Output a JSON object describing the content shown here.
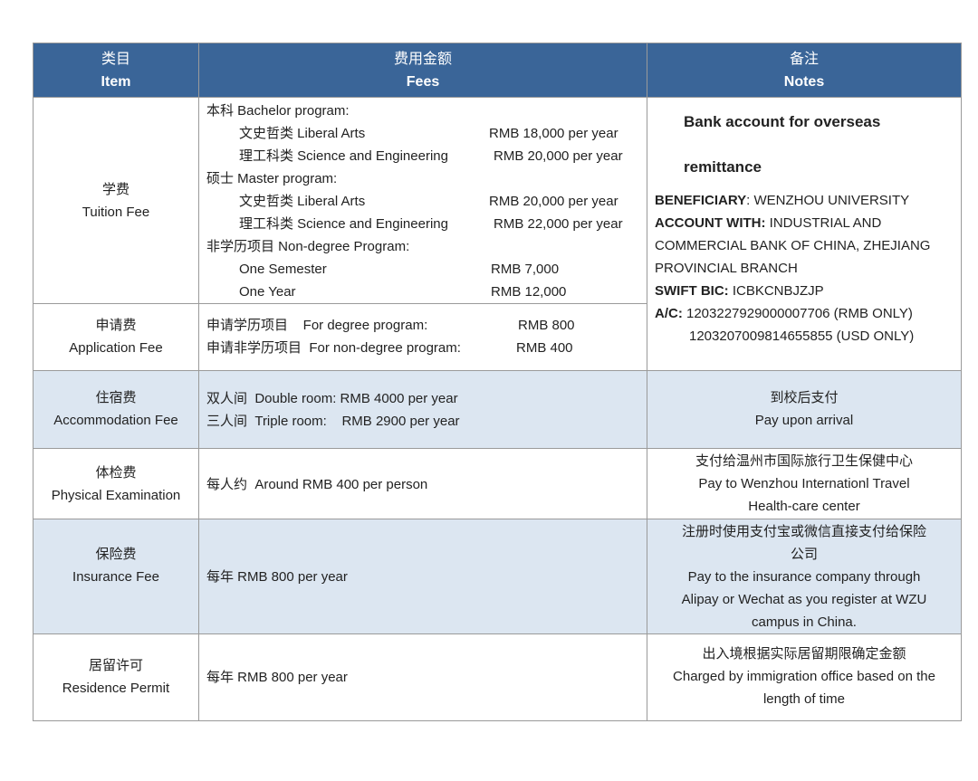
{
  "header": {
    "item_zh": "类目",
    "item_en": "Item",
    "fees_zh": "费用金额",
    "fees_en": "Fees",
    "notes_zh": "备注",
    "notes_en": "Notes"
  },
  "rows": {
    "tuition": {
      "zh": "学费",
      "en": "Tuition Fee",
      "bachelor": "本科 Bachelor program:",
      "b_arts": "文史哲类  Liberal Arts",
      "b_arts_fee": "RMB 18,000 per year",
      "b_sci": "理工科类  Science and Engineering",
      "b_sci_fee": "RMB 20,000 per year",
      "master": "硕士 Master program:",
      "m_arts": "文史哲类  Liberal Arts",
      "m_arts_fee": "RMB 20,000 per year",
      "m_sci": "理工科类  Science and Engineering",
      "m_sci_fee": "RMB 22,000 per year",
      "nondegree": "非学历项目 Non-degree Program:",
      "semester": "One Semester",
      "semester_fee": "RMB 7,000",
      "year": "One Year",
      "year_fee": "RMB 12,000"
    },
    "application": {
      "zh": "申请费",
      "en": "Application Fee",
      "degree": "申请学历项目    For degree program:",
      "degree_fee": "RMB 800",
      "nondegree": "申请非学历项目  For non-degree program:",
      "nondegree_fee": "RMB 400"
    },
    "bank": {
      "title1": "Bank account for overseas",
      "title2": "remittance",
      "beneficiary_label": "BENEFICIARY",
      "beneficiary": ": WENZHOU UNIVERSITY",
      "account_label": "ACCOUNT WITH:",
      "account1": " INDUSTRIAL AND",
      "account2": "COMMERCIAL BANK OF CHINA, ZHEJIANG",
      "account3": "PROVINCIAL BRANCH",
      "swift_label": "SWIFT BIC:",
      "swift": " ICBKCNBJZJP",
      "ac_label": "A/C:",
      "ac_rmb": " 1203227929000007706 (RMB ONLY)",
      "ac_usd": "1203207009814655855 (USD ONLY)"
    },
    "accommodation": {
      "zh": "住宿费",
      "en": "Accommodation Fee",
      "double": "双人间  Double room: RMB 4000 per year",
      "triple": "三人间  Triple room:    RMB 2900 per year",
      "note_zh": "到校后支付",
      "note_en": "Pay upon arrival"
    },
    "physical": {
      "zh": "体检费",
      "en": "Physical Examination",
      "fee": "每人约  Around RMB 400 per person",
      "note1": "支付给温州市国际旅行卫生保健中心",
      "note2": "Pay to Wenzhou Internationl Travel",
      "note3": "Health-care center"
    },
    "insurance": {
      "zh": "保险费",
      "en": "Insurance Fee",
      "fee": "每年 RMB 800 per year",
      "note1": "注册时使用支付宝或微信直接支付给保险",
      "note2": "公司",
      "note3": "Pay to the insurance company through",
      "note4": "Alipay or Wechat as you register at WZU",
      "note5": "campus in China."
    },
    "residence": {
      "zh": "居留许可",
      "en": "Residence Permit",
      "fee": "每年 RMB 800 per year",
      "note1": "出入境根据实际居留期限确定金额",
      "note2": "Charged by immigration office based on the",
      "note3": "length of time"
    }
  },
  "colors": {
    "header": "#3a6598",
    "highlight": "#dce6f1"
  }
}
